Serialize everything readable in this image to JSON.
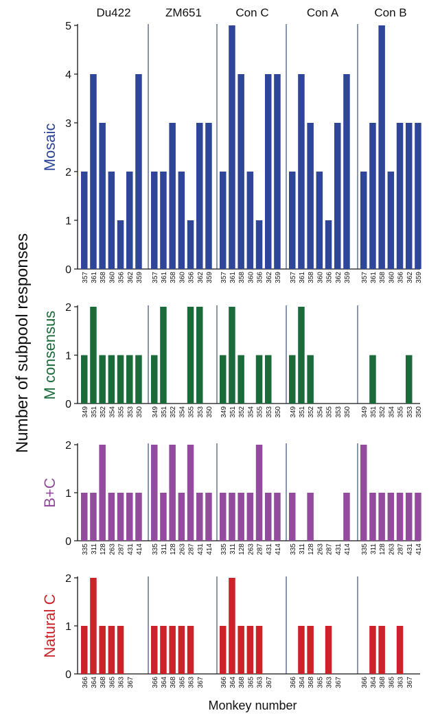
{
  "chart_data": {
    "type": "bar",
    "ylabel": "Number of subpool responses",
    "xlabel": "Monkey number",
    "groups": [
      "Du422",
      "ZM651",
      "Con C",
      "Con A",
      "Con B"
    ],
    "panels": [
      {
        "name": "Mosaic",
        "color": "#2e4598",
        "ylim": [
          0,
          5
        ],
        "yticks": [
          "0",
          "1",
          "2",
          "3",
          "4",
          "5"
        ],
        "categories": [
          "357",
          "361",
          "358",
          "360",
          "356",
          "362",
          "359"
        ],
        "series": [
          {
            "name": "Du422",
            "values": [
              2,
              4,
              3,
              2,
              1,
              2,
              4
            ]
          },
          {
            "name": "ZM651",
            "values": [
              2,
              2,
              3,
              2,
              1,
              3,
              3
            ]
          },
          {
            "name": "Con C",
            "values": [
              2,
              5,
              4,
              2,
              1,
              4,
              4
            ]
          },
          {
            "name": "Con A",
            "values": [
              2,
              4,
              3,
              2,
              1,
              3,
              4
            ]
          },
          {
            "name": "Con B",
            "values": [
              2,
              3,
              5,
              2,
              3,
              3,
              3
            ]
          }
        ]
      },
      {
        "name": "M consensus",
        "color": "#1b6b3a",
        "ylim": [
          0,
          2
        ],
        "yticks": [
          "0",
          "1",
          "2"
        ],
        "categories": [
          "349",
          "351",
          "352",
          "354",
          "355",
          "353",
          "350"
        ],
        "series": [
          {
            "name": "Du422",
            "values": [
              1,
              2,
              1,
              1,
              1,
              1,
              1
            ]
          },
          {
            "name": "ZM651",
            "values": [
              1,
              2,
              0,
              0,
              2,
              2,
              0
            ]
          },
          {
            "name": "Con C",
            "values": [
              1,
              2,
              1,
              0,
              1,
              1,
              0
            ]
          },
          {
            "name": "Con A",
            "values": [
              1,
              2,
              1,
              0,
              0,
              0,
              0
            ]
          },
          {
            "name": "Con B",
            "values": [
              0,
              1,
              0,
              0,
              0,
              1,
              0
            ]
          }
        ]
      },
      {
        "name": "B+C",
        "color": "#924b9d",
        "ylim": [
          0,
          2
        ],
        "yticks": [
          "0",
          "1",
          "2"
        ],
        "categories": [
          "335",
          "311",
          "128",
          "263",
          "287",
          "431",
          "414"
        ],
        "series": [
          {
            "name": "Du422",
            "values": [
              1,
              1,
              2,
              1,
              1,
              1,
              1
            ]
          },
          {
            "name": "ZM651",
            "values": [
              2,
              1,
              2,
              1,
              2,
              1,
              1
            ]
          },
          {
            "name": "Con C",
            "values": [
              1,
              1,
              1,
              1,
              2,
              1,
              1
            ]
          },
          {
            "name": "Con A",
            "values": [
              1,
              0,
              1,
              0,
              0,
              0,
              1
            ]
          },
          {
            "name": "Con B",
            "values": [
              2,
              1,
              1,
              1,
              1,
              1,
              1
            ]
          }
        ]
      },
      {
        "name": "Natural C",
        "color": "#cc2229",
        "ylim": [
          0,
          2
        ],
        "yticks": [
          "0",
          "1",
          "2"
        ],
        "categories": [
          "366",
          "364",
          "368",
          "365",
          "363",
          "367"
        ],
        "series": [
          {
            "name": "Du422",
            "values": [
              1,
              2,
              1,
              1,
              1,
              0
            ]
          },
          {
            "name": "ZM651",
            "values": [
              1,
              1,
              1,
              1,
              1,
              0
            ]
          },
          {
            "name": "Con C",
            "values": [
              1,
              2,
              1,
              1,
              1,
              0
            ]
          },
          {
            "name": "Con A",
            "values": [
              0,
              1,
              1,
              0,
              1,
              0
            ]
          },
          {
            "name": "Con B",
            "values": [
              0,
              1,
              1,
              0,
              1,
              0
            ]
          }
        ]
      }
    ]
  }
}
